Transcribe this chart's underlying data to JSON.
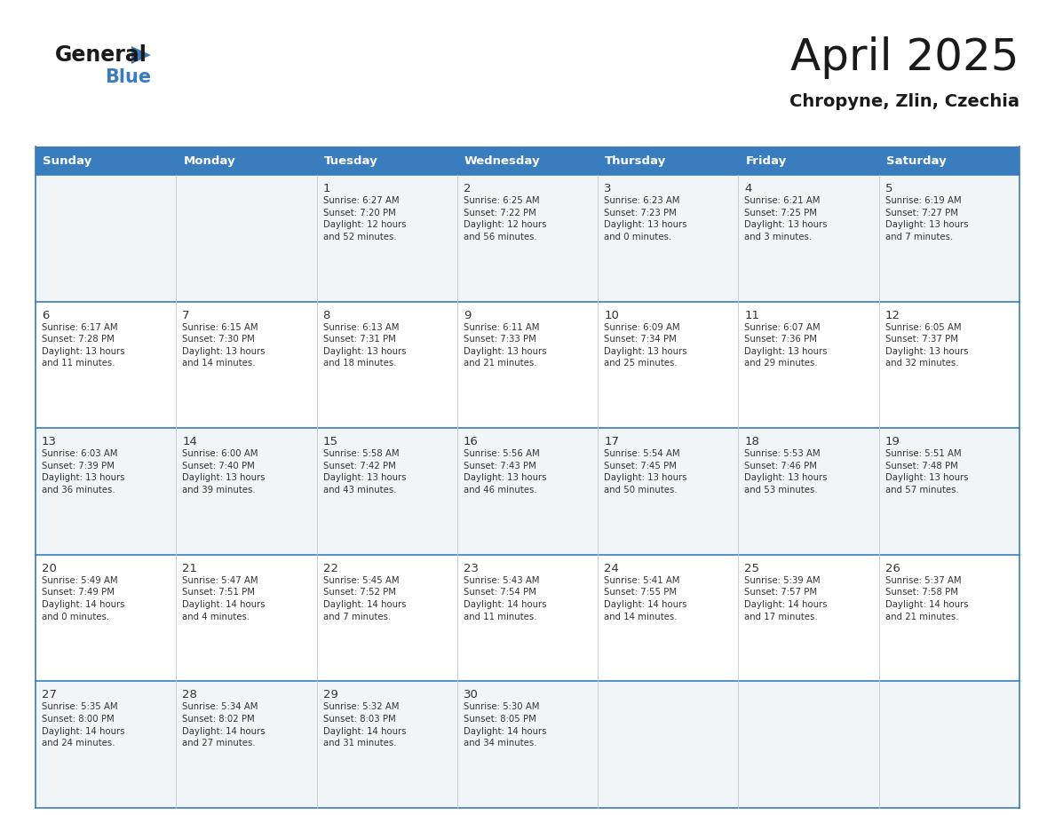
{
  "title": "April 2025",
  "subtitle": "Chropyne, Zlin, Czechia",
  "header_color": "#3a7dbf",
  "header_text_color": "#ffffff",
  "row_bg_light": "#f2f5f8",
  "row_bg_white": "#ffffff",
  "border_color": "#3a7dbf",
  "divider_color": "#c0c8d0",
  "text_color": "#333333",
  "days_of_week": [
    "Sunday",
    "Monday",
    "Tuesday",
    "Wednesday",
    "Thursday",
    "Friday",
    "Saturday"
  ],
  "weeks": [
    [
      {
        "day": "",
        "info": ""
      },
      {
        "day": "",
        "info": ""
      },
      {
        "day": "1",
        "info": "Sunrise: 6:27 AM\nSunset: 7:20 PM\nDaylight: 12 hours\nand 52 minutes."
      },
      {
        "day": "2",
        "info": "Sunrise: 6:25 AM\nSunset: 7:22 PM\nDaylight: 12 hours\nand 56 minutes."
      },
      {
        "day": "3",
        "info": "Sunrise: 6:23 AM\nSunset: 7:23 PM\nDaylight: 13 hours\nand 0 minutes."
      },
      {
        "day": "4",
        "info": "Sunrise: 6:21 AM\nSunset: 7:25 PM\nDaylight: 13 hours\nand 3 minutes."
      },
      {
        "day": "5",
        "info": "Sunrise: 6:19 AM\nSunset: 7:27 PM\nDaylight: 13 hours\nand 7 minutes."
      }
    ],
    [
      {
        "day": "6",
        "info": "Sunrise: 6:17 AM\nSunset: 7:28 PM\nDaylight: 13 hours\nand 11 minutes."
      },
      {
        "day": "7",
        "info": "Sunrise: 6:15 AM\nSunset: 7:30 PM\nDaylight: 13 hours\nand 14 minutes."
      },
      {
        "day": "8",
        "info": "Sunrise: 6:13 AM\nSunset: 7:31 PM\nDaylight: 13 hours\nand 18 minutes."
      },
      {
        "day": "9",
        "info": "Sunrise: 6:11 AM\nSunset: 7:33 PM\nDaylight: 13 hours\nand 21 minutes."
      },
      {
        "day": "10",
        "info": "Sunrise: 6:09 AM\nSunset: 7:34 PM\nDaylight: 13 hours\nand 25 minutes."
      },
      {
        "day": "11",
        "info": "Sunrise: 6:07 AM\nSunset: 7:36 PM\nDaylight: 13 hours\nand 29 minutes."
      },
      {
        "day": "12",
        "info": "Sunrise: 6:05 AM\nSunset: 7:37 PM\nDaylight: 13 hours\nand 32 minutes."
      }
    ],
    [
      {
        "day": "13",
        "info": "Sunrise: 6:03 AM\nSunset: 7:39 PM\nDaylight: 13 hours\nand 36 minutes."
      },
      {
        "day": "14",
        "info": "Sunrise: 6:00 AM\nSunset: 7:40 PM\nDaylight: 13 hours\nand 39 minutes."
      },
      {
        "day": "15",
        "info": "Sunrise: 5:58 AM\nSunset: 7:42 PM\nDaylight: 13 hours\nand 43 minutes."
      },
      {
        "day": "16",
        "info": "Sunrise: 5:56 AM\nSunset: 7:43 PM\nDaylight: 13 hours\nand 46 minutes."
      },
      {
        "day": "17",
        "info": "Sunrise: 5:54 AM\nSunset: 7:45 PM\nDaylight: 13 hours\nand 50 minutes."
      },
      {
        "day": "18",
        "info": "Sunrise: 5:53 AM\nSunset: 7:46 PM\nDaylight: 13 hours\nand 53 minutes."
      },
      {
        "day": "19",
        "info": "Sunrise: 5:51 AM\nSunset: 7:48 PM\nDaylight: 13 hours\nand 57 minutes."
      }
    ],
    [
      {
        "day": "20",
        "info": "Sunrise: 5:49 AM\nSunset: 7:49 PM\nDaylight: 14 hours\nand 0 minutes."
      },
      {
        "day": "21",
        "info": "Sunrise: 5:47 AM\nSunset: 7:51 PM\nDaylight: 14 hours\nand 4 minutes."
      },
      {
        "day": "22",
        "info": "Sunrise: 5:45 AM\nSunset: 7:52 PM\nDaylight: 14 hours\nand 7 minutes."
      },
      {
        "day": "23",
        "info": "Sunrise: 5:43 AM\nSunset: 7:54 PM\nDaylight: 14 hours\nand 11 minutes."
      },
      {
        "day": "24",
        "info": "Sunrise: 5:41 AM\nSunset: 7:55 PM\nDaylight: 14 hours\nand 14 minutes."
      },
      {
        "day": "25",
        "info": "Sunrise: 5:39 AM\nSunset: 7:57 PM\nDaylight: 14 hours\nand 17 minutes."
      },
      {
        "day": "26",
        "info": "Sunrise: 5:37 AM\nSunset: 7:58 PM\nDaylight: 14 hours\nand 21 minutes."
      }
    ],
    [
      {
        "day": "27",
        "info": "Sunrise: 5:35 AM\nSunset: 8:00 PM\nDaylight: 14 hours\nand 24 minutes."
      },
      {
        "day": "28",
        "info": "Sunrise: 5:34 AM\nSunset: 8:02 PM\nDaylight: 14 hours\nand 27 minutes."
      },
      {
        "day": "29",
        "info": "Sunrise: 5:32 AM\nSunset: 8:03 PM\nDaylight: 14 hours\nand 31 minutes."
      },
      {
        "day": "30",
        "info": "Sunrise: 5:30 AM\nSunset: 8:05 PM\nDaylight: 14 hours\nand 34 minutes."
      },
      {
        "day": "",
        "info": ""
      },
      {
        "day": "",
        "info": ""
      },
      {
        "day": "",
        "info": ""
      }
    ]
  ],
  "logo_general_color": "#1a1a1a",
  "logo_blue_color": "#3a7dbf",
  "logo_triangle_color": "#3a7dbf"
}
